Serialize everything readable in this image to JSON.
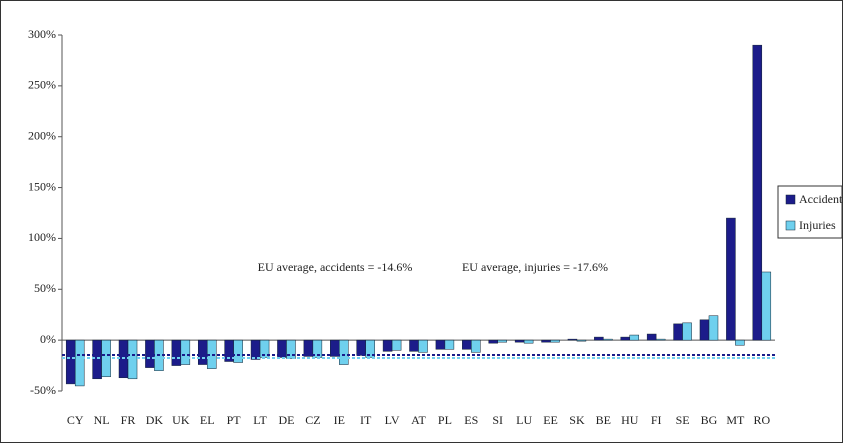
{
  "chart_data": {
    "type": "bar",
    "categories": [
      "CY",
      "NL",
      "FR",
      "DK",
      "UK",
      "EL",
      "PT",
      "LT",
      "DE",
      "CZ",
      "IE",
      "IT",
      "LV",
      "AT",
      "PL",
      "ES",
      "SI",
      "LU",
      "EE",
      "SK",
      "BE",
      "HU",
      "FI",
      "SE",
      "BG",
      "MT",
      "RO"
    ],
    "series": [
      {
        "name": "Accidents",
        "color": "#1c1c8a",
        "values": [
          -43,
          -38,
          -37,
          -27,
          -25,
          -24,
          -21,
          -19,
          -17,
          -16,
          -16,
          -15,
          -11,
          -11,
          -9,
          -9,
          -3,
          -2,
          -2,
          1,
          3,
          3,
          6,
          16,
          20,
          120,
          290
        ]
      },
      {
        "name": "Injuries",
        "color": "#6fd0ee",
        "values": [
          -45,
          -36,
          -38,
          -30,
          -24,
          -28,
          -22,
          -17,
          -18,
          -17,
          -24,
          -17,
          -10,
          -12,
          -9,
          -12,
          -2,
          -3,
          -2,
          -1,
          1,
          5,
          1,
          17,
          24,
          -5,
          67
        ]
      }
    ],
    "ylim": [
      -50,
      300
    ],
    "yticks": [
      {
        "value": -50,
        "label": "-50%"
      },
      {
        "value": 0,
        "label": "0%"
      },
      {
        "value": 50,
        "label": "50%"
      },
      {
        "value": 100,
        "label": "100%"
      },
      {
        "value": 150,
        "label": "150%"
      },
      {
        "value": 200,
        "label": "200%"
      },
      {
        "value": 250,
        "label": "250%"
      },
      {
        "value": 300,
        "label": "300%"
      }
    ],
    "reference_lines": [
      {
        "value": -14.6,
        "color": "#1c1c8a",
        "label": "EU average, accidents = -14.6%"
      },
      {
        "value": -17.6,
        "color": "#6fd0ee",
        "label": "EU average, injuries = -17.6%"
      }
    ],
    "legend": "right"
  }
}
